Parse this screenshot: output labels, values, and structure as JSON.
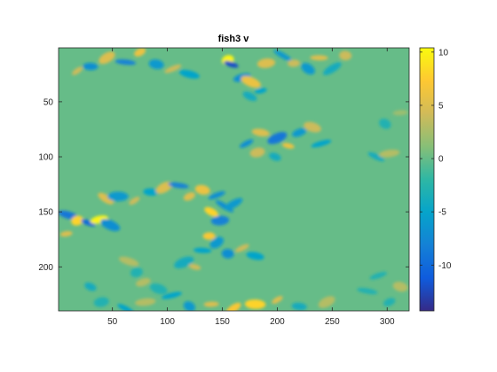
{
  "chart_data": {
    "type": "heatmap",
    "title": "fish3 v",
    "xlabel": "",
    "ylabel": "",
    "xlim": [
      1,
      320
    ],
    "ylim": [
      1,
      240
    ],
    "y_reversed": true,
    "x_ticks": [
      50,
      100,
      150,
      200,
      250,
      300
    ],
    "x_tick_labels": [
      "50",
      "100",
      "150",
      "200",
      "250",
      "300"
    ],
    "y_ticks": [
      50,
      100,
      150,
      200
    ],
    "y_tick_labels": [
      "50",
      "100",
      "150",
      "200"
    ],
    "clim": [
      -14.3,
      10.4
    ],
    "background_value": 0,
    "colormap": "parula",
    "colorbar": {
      "location": "right",
      "ticks": [
        10,
        5,
        0,
        -5,
        -10
      ],
      "tick_labels": [
        "10",
        "5",
        "0",
        "-5",
        "-10"
      ],
      "colors": [
        "#352a87",
        "#0f5cdd",
        "#1481d6",
        "#06a4ca",
        "#2eb7a4",
        "#87bf77",
        "#d1bb59",
        "#fec832",
        "#f9fb0e"
      ]
    },
    "blobs": [
      {
        "x": 18,
        "y": 22,
        "value": 4
      },
      {
        "x": 30,
        "y": 18,
        "value": -7
      },
      {
        "x": 45,
        "y": 10,
        "value": 5
      },
      {
        "x": 62,
        "y": 14,
        "value": -8
      },
      {
        "x": 75,
        "y": 5,
        "value": 6
      },
      {
        "x": 90,
        "y": 16,
        "value": -6
      },
      {
        "x": 105,
        "y": 20,
        "value": 4
      },
      {
        "x": 120,
        "y": 25,
        "value": -5
      },
      {
        "x": 155,
        "y": 12,
        "value": 10
      },
      {
        "x": 158,
        "y": 16,
        "value": -12
      },
      {
        "x": 168,
        "y": 28,
        "value": -7
      },
      {
        "x": 176,
        "y": 32,
        "value": 6
      },
      {
        "x": 185,
        "y": 40,
        "value": -5
      },
      {
        "x": 175,
        "y": 45,
        "value": -4
      },
      {
        "x": 190,
        "y": 15,
        "value": 5
      },
      {
        "x": 205,
        "y": 8,
        "value": -6
      },
      {
        "x": 215,
        "y": 15,
        "value": 4
      },
      {
        "x": 228,
        "y": 20,
        "value": -6
      },
      {
        "x": 238,
        "y": 10,
        "value": 5
      },
      {
        "x": 250,
        "y": 20,
        "value": -4
      },
      {
        "x": 262,
        "y": 8,
        "value": 4
      },
      {
        "x": 172,
        "y": 88,
        "value": -7
      },
      {
        "x": 185,
        "y": 78,
        "value": 5
      },
      {
        "x": 200,
        "y": 83,
        "value": -9
      },
      {
        "x": 210,
        "y": 90,
        "value": 6
      },
      {
        "x": 220,
        "y": 78,
        "value": -6
      },
      {
        "x": 232,
        "y": 73,
        "value": 4
      },
      {
        "x": 240,
        "y": 88,
        "value": -5
      },
      {
        "x": 198,
        "y": 100,
        "value": -4
      },
      {
        "x": 182,
        "y": 96,
        "value": 4
      },
      {
        "x": 290,
        "y": 100,
        "value": -4
      },
      {
        "x": 302,
        "y": 97,
        "value": 3
      },
      {
        "x": 298,
        "y": 70,
        "value": -3
      },
      {
        "x": 312,
        "y": 60,
        "value": 2
      },
      {
        "x": 44,
        "y": 138,
        "value": 5
      },
      {
        "x": 55,
        "y": 136,
        "value": -6
      },
      {
        "x": 70,
        "y": 140,
        "value": 4
      },
      {
        "x": 85,
        "y": 132,
        "value": -5
      },
      {
        "x": 97,
        "y": 128,
        "value": 5
      },
      {
        "x": 110,
        "y": 126,
        "value": -8
      },
      {
        "x": 120,
        "y": 136,
        "value": 5
      },
      {
        "x": 132,
        "y": 130,
        "value": 6
      },
      {
        "x": 145,
        "y": 135,
        "value": -7
      },
      {
        "x": 10,
        "y": 153,
        "value": -9
      },
      {
        "x": 18,
        "y": 158,
        "value": 8
      },
      {
        "x": 28,
        "y": 160,
        "value": -10
      },
      {
        "x": 38,
        "y": 157,
        "value": 10
      },
      {
        "x": 48,
        "y": 162,
        "value": -7
      },
      {
        "x": 8,
        "y": 170,
        "value": 5
      },
      {
        "x": 140,
        "y": 150,
        "value": 8
      },
      {
        "x": 148,
        "y": 158,
        "value": -8
      },
      {
        "x": 152,
        "y": 145,
        "value": -7
      },
      {
        "x": 138,
        "y": 172,
        "value": 7
      },
      {
        "x": 145,
        "y": 178,
        "value": -6
      },
      {
        "x": 132,
        "y": 185,
        "value": -5
      },
      {
        "x": 160,
        "y": 143,
        "value": -6
      },
      {
        "x": 155,
        "y": 188,
        "value": -7
      },
      {
        "x": 168,
        "y": 183,
        "value": 4
      },
      {
        "x": 180,
        "y": 190,
        "value": -5
      },
      {
        "x": 115,
        "y": 196,
        "value": -4
      },
      {
        "x": 125,
        "y": 200,
        "value": 4
      },
      {
        "x": 78,
        "y": 214,
        "value": 3
      },
      {
        "x": 92,
        "y": 220,
        "value": -3
      },
      {
        "x": 104,
        "y": 226,
        "value": -5
      },
      {
        "x": 30,
        "y": 218,
        "value": -4
      },
      {
        "x": 40,
        "y": 232,
        "value": -3
      },
      {
        "x": 62,
        "y": 238,
        "value": -5
      },
      {
        "x": 80,
        "y": 232,
        "value": 3
      },
      {
        "x": 120,
        "y": 236,
        "value": -6
      },
      {
        "x": 140,
        "y": 234,
        "value": 5
      },
      {
        "x": 160,
        "y": 238,
        "value": 7
      },
      {
        "x": 180,
        "y": 234,
        "value": 8
      },
      {
        "x": 200,
        "y": 230,
        "value": 5
      },
      {
        "x": 220,
        "y": 236,
        "value": -4
      },
      {
        "x": 245,
        "y": 232,
        "value": 3
      },
      {
        "x": 282,
        "y": 222,
        "value": -3
      },
      {
        "x": 302,
        "y": 232,
        "value": -3
      },
      {
        "x": 312,
        "y": 218,
        "value": 3
      },
      {
        "x": 292,
        "y": 208,
        "value": -3
      },
      {
        "x": 65,
        "y": 195,
        "value": 3
      },
      {
        "x": 72,
        "y": 205,
        "value": -3
      }
    ]
  }
}
